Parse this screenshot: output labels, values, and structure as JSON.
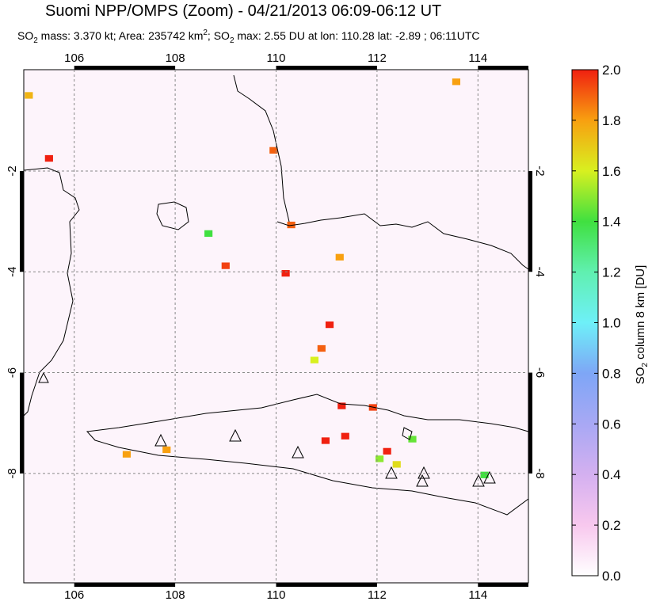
{
  "chart_data": {
    "type": "map",
    "title": "Suomi NPP/OMPS (Zoom) - 04/21/2013 06:09-06:12 UT",
    "subtitle": [
      "SO",
      "2",
      " mass: 3.370 kt; Area: 235742 km",
      "2",
      "; SO",
      "2",
      " max: 2.55 DU at lon: 110.28 lat: -2.89 ; 06:11UTC"
    ],
    "xlim": [
      105,
      115
    ],
    "ylim": [
      -10.17,
      0.01
    ],
    "xticks": [
      106,
      108,
      110,
      112,
      114
    ],
    "yticks": [
      -8,
      -6,
      -4,
      -2
    ],
    "grid": true,
    "colorbar_label": [
      "SO",
      "2",
      " column 8 km [DU]"
    ],
    "clim": [
      0,
      2
    ],
    "cticks": [
      {
        "value": 0,
        "label": "0.0"
      },
      0.2,
      0.4,
      0.6,
      0.8,
      {
        "value": 1,
        "label": "1.0"
      },
      1.2,
      1.4,
      1.6,
      1.8,
      {
        "value": 2,
        "label": "2.0"
      }
    ],
    "colormap": [
      "#ffffff",
      "#f8c8ee",
      "#d4b0f0",
      "#a8a8f4",
      "#7ea6f6",
      "#6ef0f8",
      "#60f0b0",
      "#40e040",
      "#d8f020",
      "#f8a010",
      "#f02010"
    ],
    "points": {
      "lon": [
        105.5,
        109.95,
        109.0,
        110.19,
        110.3,
        111.06,
        110.9,
        111.3,
        111.92,
        111.37,
        110.98,
        112.2,
        113.57,
        111.26,
        107.83,
        107.04,
        105.1,
        112.05,
        112.7,
        112.39,
        114.13,
        108.66,
        110.76
      ],
      "lat": [
        -1.75,
        -1.59,
        -3.88,
        -4.03,
        -3.07,
        -5.05,
        -5.52,
        -6.66,
        -6.69,
        -7.26,
        -7.35,
        -7.56,
        -0.23,
        -3.71,
        -7.53,
        -7.62,
        -0.5,
        -7.71,
        -7.32,
        -7.82,
        -8.03,
        -3.24,
        -5.75
      ],
      "values": [
        2.0,
        1.9,
        1.95,
        2.0,
        1.9,
        2.0,
        1.9,
        2.0,
        1.95,
        2.0,
        2.0,
        2.0,
        1.8,
        1.8,
        1.8,
        1.8,
        1.75,
        1.5,
        1.45,
        1.65,
        1.4,
        1.4,
        1.6
      ]
    }
  }
}
